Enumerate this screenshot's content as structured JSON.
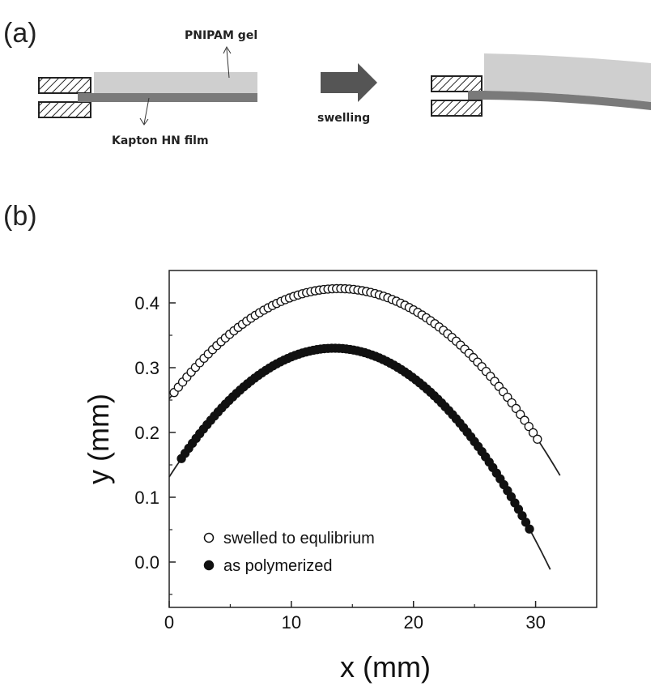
{
  "schematic": {
    "panel_label": "(a)",
    "gel_label": "PNIPAM gel",
    "film_label": "Kapton HN film",
    "arrow_label": "swelling",
    "colors": {
      "gel": "#cfcfcf",
      "film": "#7a7a7a",
      "arrow": "#555555"
    }
  },
  "plot_panel_label": "(b)",
  "chart_data": {
    "type": "scatter",
    "xlabel": "x (mm)",
    "ylabel": "y (mm)",
    "xlim": [
      0,
      35
    ],
    "ylim": [
      -0.07,
      0.45
    ],
    "x_ticks": [
      0,
      10,
      20,
      30
    ],
    "x_tick_labels": [
      "0",
      "10",
      "20",
      "30"
    ],
    "y_ticks": [
      0.0,
      0.1,
      0.2,
      0.3,
      0.4
    ],
    "y_tick_labels": [
      "0.0",
      "0.1",
      "0.2",
      "0.3",
      "0.4"
    ],
    "legend_position": "lower-left",
    "series": [
      {
        "name": "swelled to equlibrium",
        "marker": "open-circle",
        "fit_curve": {
          "x_range": [
            0,
            32
          ],
          "vertex_x": 13.9,
          "vertex_y": 0.422,
          "curvature": -0.00088
        },
        "points": {
          "x_range": [
            0.4,
            30.3
          ],
          "step": 0.35
        }
      },
      {
        "name": "as polymerized",
        "marker": "filled-circle",
        "fit_curve": {
          "x_range": [
            0,
            31.2
          ],
          "vertex_x": 13.5,
          "vertex_y": 0.33,
          "curvature": -0.00109
        },
        "points": {
          "x_range": [
            1.0,
            29.7
          ],
          "step": 0.3
        }
      }
    ]
  }
}
